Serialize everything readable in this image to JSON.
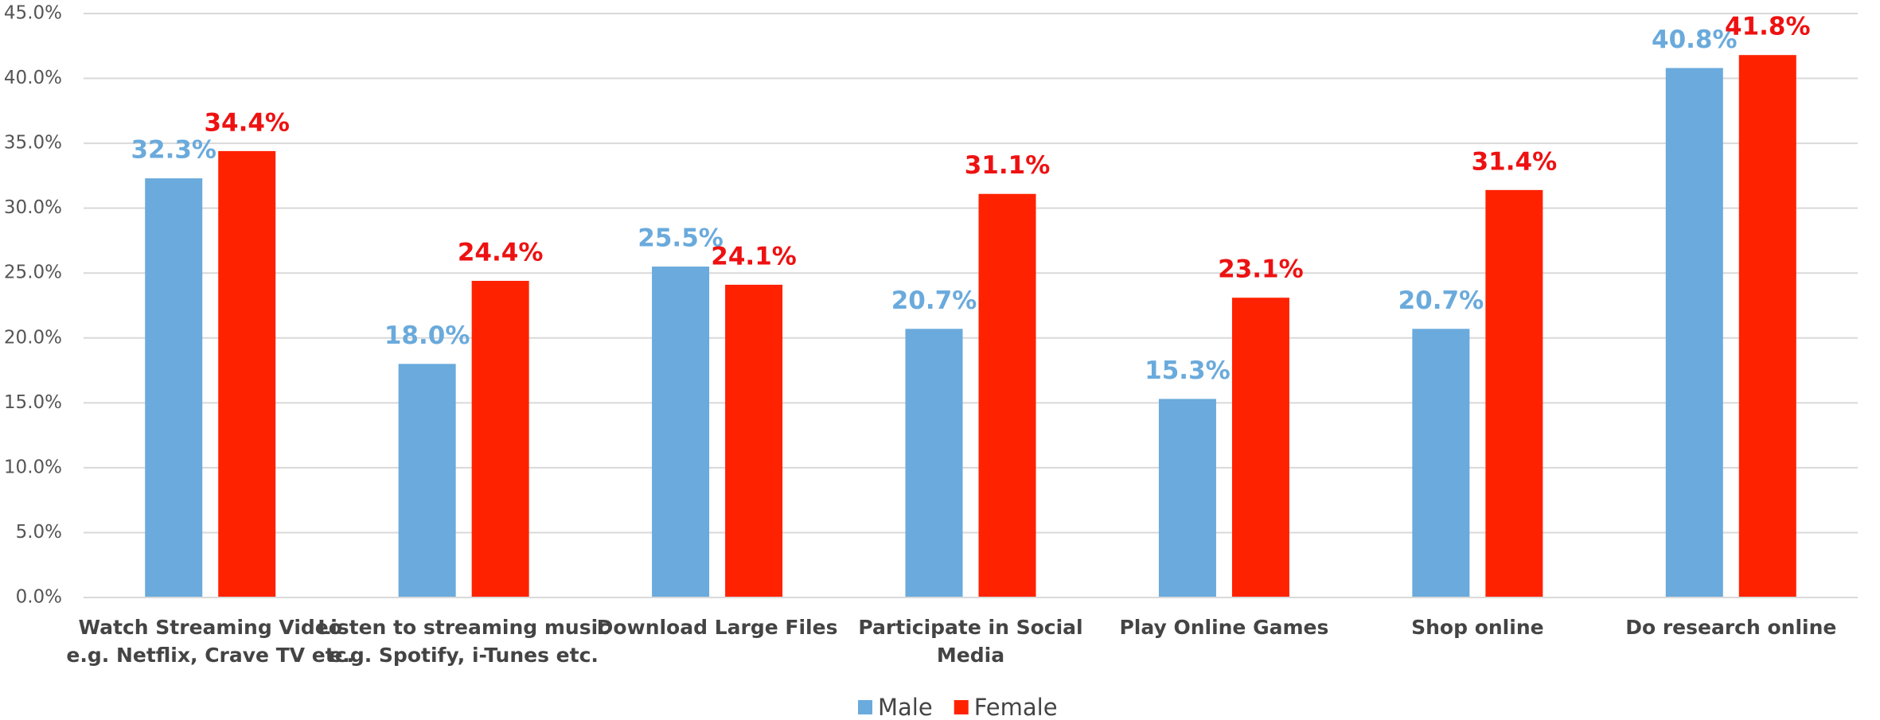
{
  "chart_data": {
    "type": "bar",
    "categories": [
      "Watch Streaming Video\ne.g. Netflix, Crave TV etc.",
      "Listen to streaming music\ne.g. Spotify, i-Tunes etc.",
      "Download Large Files",
      "Participate in Social\nMedia",
      "Play Online Games",
      "Shop online",
      "Do research online"
    ],
    "series": [
      {
        "name": "Male",
        "color": "#6aaadc",
        "values": [
          32.3,
          18.0,
          25.5,
          20.7,
          15.3,
          20.7,
          40.8
        ],
        "value_labels": [
          "32.3%",
          "18.0%",
          "25.5%",
          "20.7%",
          "15.3%",
          "20.7%",
          "40.8%"
        ]
      },
      {
        "name": "Female",
        "color": "#ff2200",
        "values": [
          34.4,
          24.4,
          24.1,
          31.1,
          23.1,
          31.4,
          41.8
        ],
        "value_labels": [
          "34.4%",
          "24.4%",
          "24.1%",
          "31.1%",
          "23.1%",
          "31.4%",
          "41.8%"
        ]
      }
    ],
    "ylim": [
      0,
      45
    ],
    "yticks": [
      {
        "value": 0,
        "label": "0.0%"
      },
      {
        "value": 5,
        "label": "5.0%"
      },
      {
        "value": 10,
        "label": "10.0%"
      },
      {
        "value": 15,
        "label": "15.0%"
      },
      {
        "value": 20,
        "label": "20.0%"
      },
      {
        "value": 25,
        "label": "25.0%"
      },
      {
        "value": 30,
        "label": "30.0%"
      },
      {
        "value": 35,
        "label": "35.0%"
      },
      {
        "value": 40,
        "label": "40.0%"
      },
      {
        "value": 45,
        "label": "45.0%"
      }
    ],
    "grid": true,
    "legend": "bottom"
  }
}
